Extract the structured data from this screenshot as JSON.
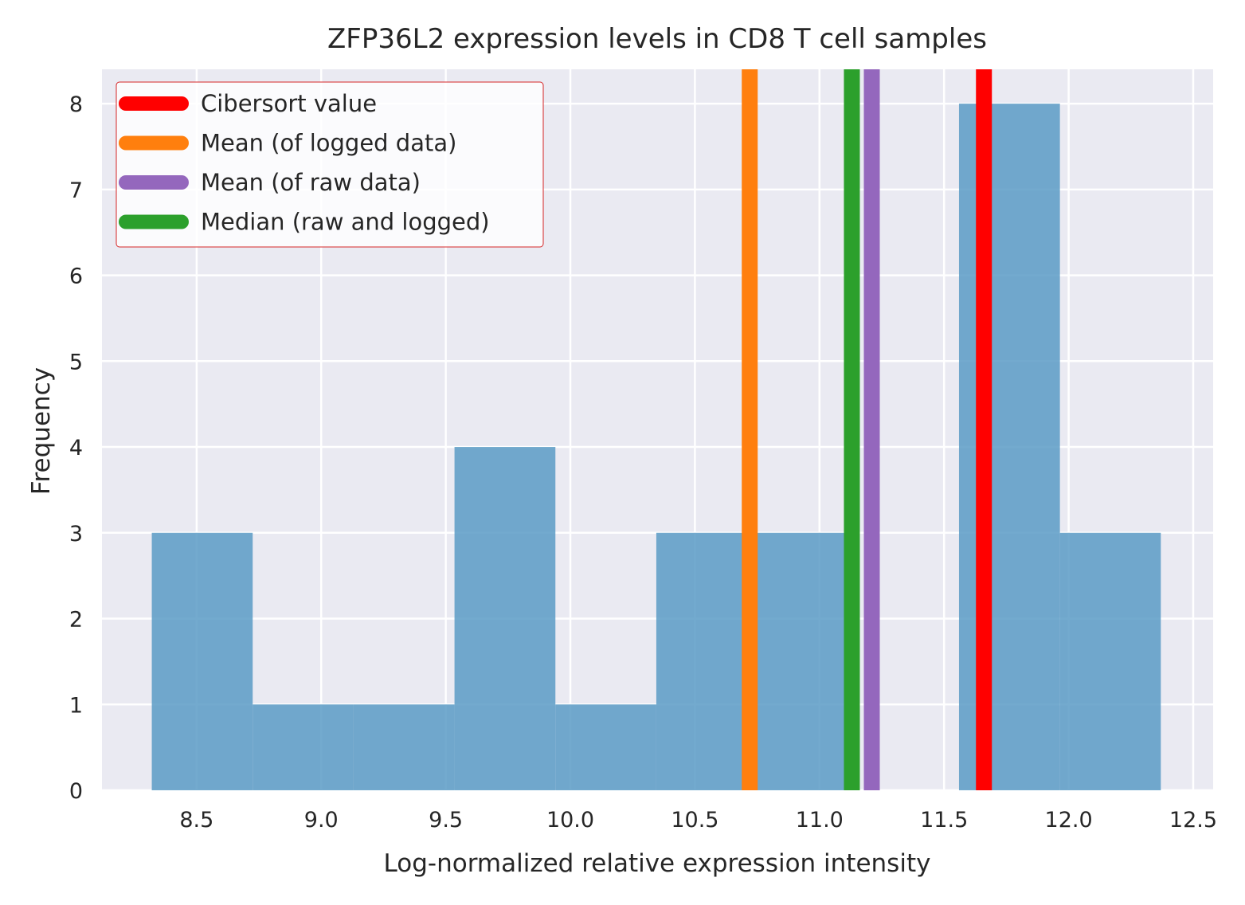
{
  "chart_data": {
    "type": "histogram",
    "title": "ZFP36L2 expression levels in CD8 T cell samples",
    "xlabel": "Log-normalized relative expression intensity",
    "ylabel": "Frequency",
    "xlim": [
      8.12,
      12.58
    ],
    "ylim": [
      0,
      8.4
    ],
    "xticks": [
      8.5,
      9.0,
      9.5,
      10.0,
      10.5,
      11.0,
      11.5,
      12.0,
      12.5
    ],
    "xtick_labels": [
      "8.5",
      "9.0",
      "9.5",
      "10.0",
      "10.5",
      "11.0",
      "11.5",
      "12.0",
      "12.5"
    ],
    "yticks": [
      0,
      1,
      2,
      3,
      4,
      5,
      6,
      7,
      8
    ],
    "ytick_labels": [
      "0",
      "1",
      "2",
      "3",
      "4",
      "5",
      "6",
      "7",
      "8"
    ],
    "grid": true,
    "legend_position": "top-left",
    "bins": [
      {
        "x0": 8.32,
        "x1": 8.725,
        "count": 3
      },
      {
        "x0": 8.725,
        "x1": 9.13,
        "count": 1
      },
      {
        "x0": 9.13,
        "x1": 9.535,
        "count": 1
      },
      {
        "x0": 9.535,
        "x1": 9.94,
        "count": 4
      },
      {
        "x0": 9.94,
        "x1": 10.345,
        "count": 1
      },
      {
        "x0": 10.345,
        "x1": 10.75,
        "count": 3
      },
      {
        "x0": 10.75,
        "x1": 11.155,
        "count": 3
      },
      {
        "x0": 11.155,
        "x1": 11.56,
        "count": 0
      },
      {
        "x0": 11.56,
        "x1": 11.965,
        "count": 8
      },
      {
        "x0": 11.965,
        "x1": 12.37,
        "count": 3
      }
    ],
    "vlines": [
      {
        "name": "Cibersort value",
        "x": 11.66,
        "color": "#ff0000"
      },
      {
        "name": "Mean (of logged data)",
        "x": 10.72,
        "color": "#ff7f0e"
      },
      {
        "name": "Mean (of raw data)",
        "x": 11.21,
        "color": "#9467bd"
      },
      {
        "name": "Median (raw and logged)",
        "x": 11.13,
        "color": "#2ca02c"
      }
    ],
    "colors": {
      "bars": "#5b9bc5",
      "background": "#eaeaf2",
      "grid": "#ffffff",
      "legend_border": "#d62728"
    }
  }
}
